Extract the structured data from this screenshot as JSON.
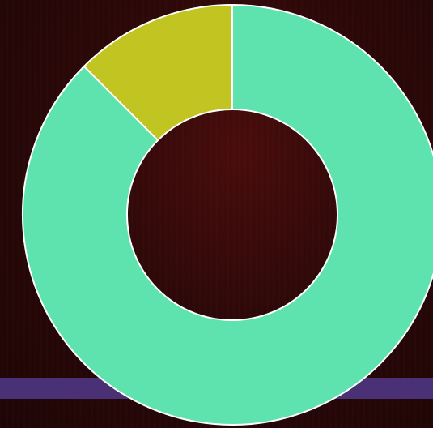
{
  "chart_data": {
    "type": "pie",
    "donut": true,
    "title": "",
    "slices": [
      {
        "value": 87.5,
        "color": "#5fe3ae"
      },
      {
        "value": 12.5,
        "color": "#c2c421"
      }
    ],
    "stroke_color": "#ffffff"
  },
  "background": {
    "base_color": "#2c0808",
    "band_color": "#4a3175"
  }
}
